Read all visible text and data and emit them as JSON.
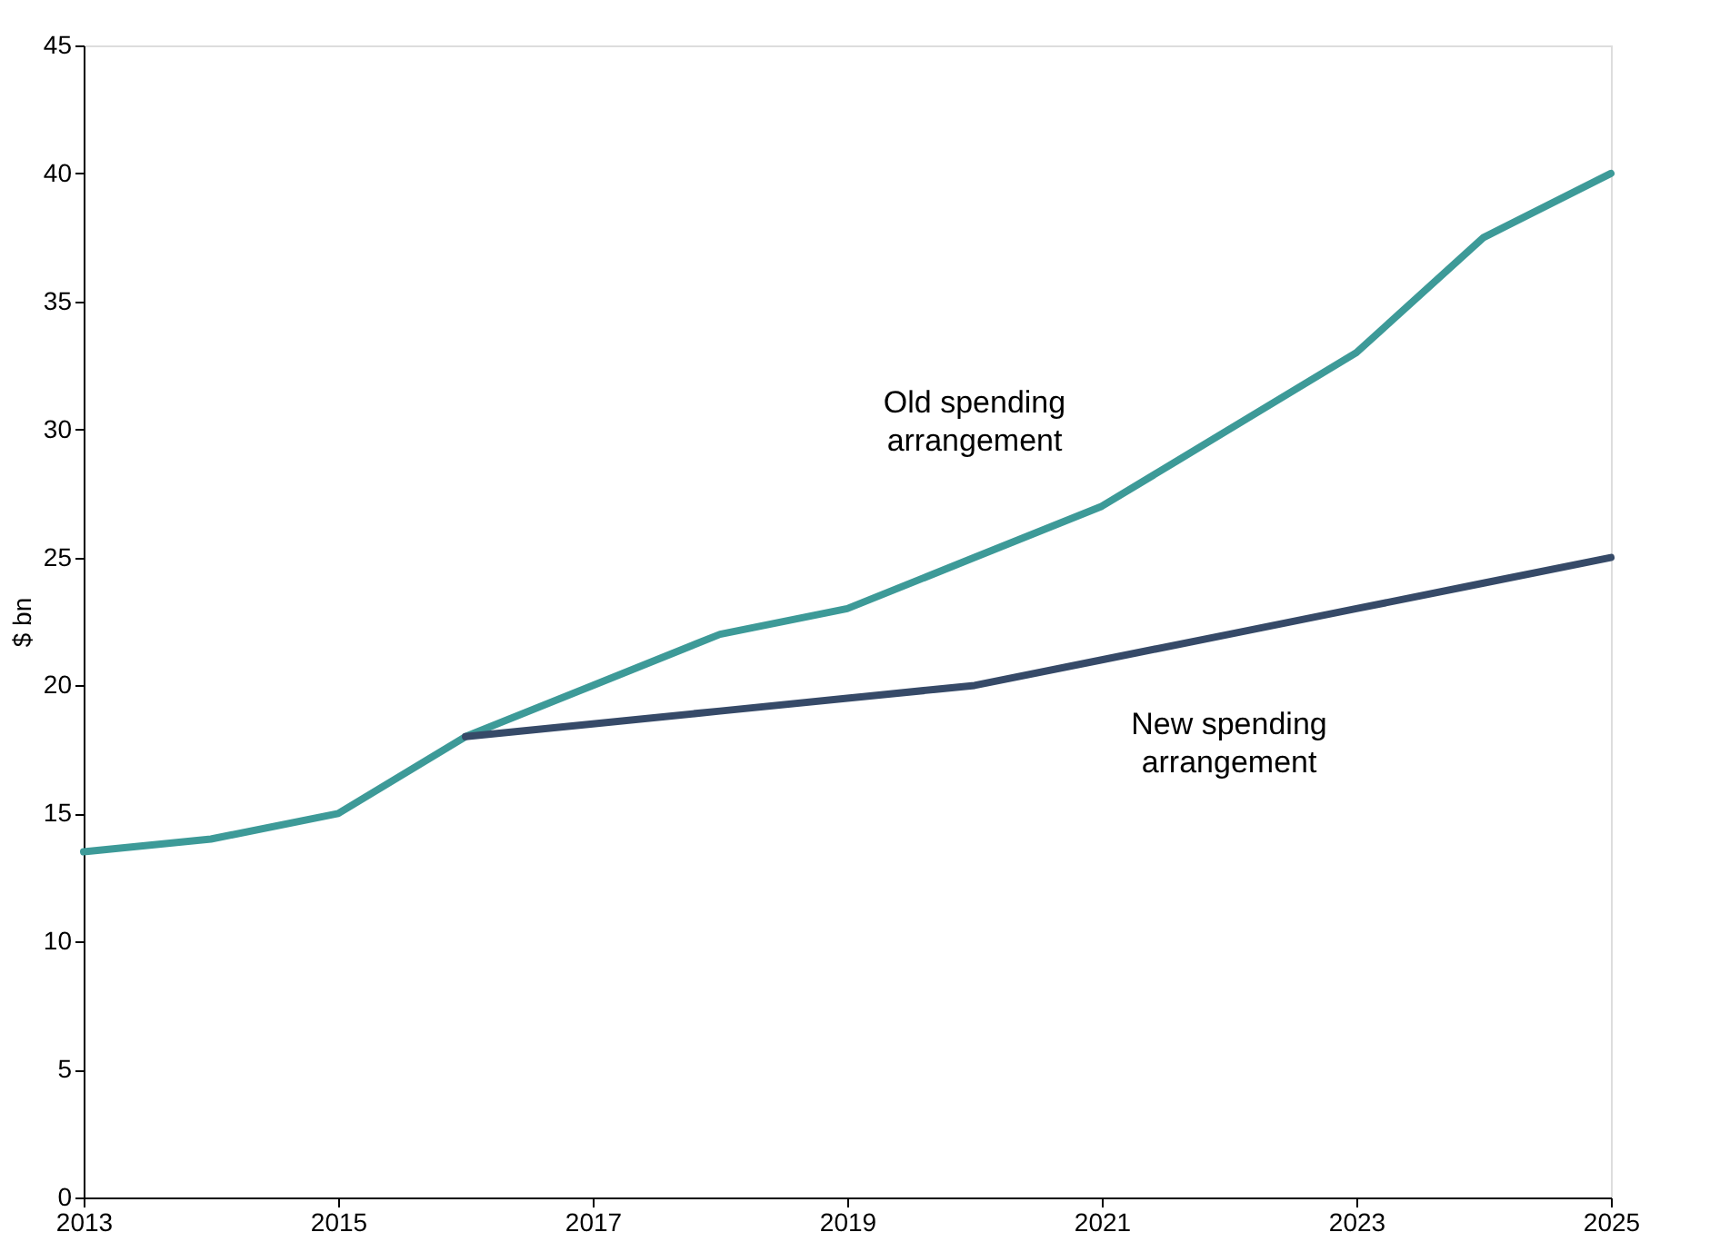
{
  "chart_data": {
    "type": "line",
    "ylabel": "$ bn",
    "x": [
      2013,
      2014,
      2015,
      2016,
      2017,
      2018,
      2019,
      2020,
      2021,
      2022,
      2023,
      2024,
      2025
    ],
    "series": [
      {
        "name": "Old spending arrangement",
        "color": "#3d9a98",
        "values": [
          13.5,
          14,
          15,
          18,
          20,
          22,
          23,
          25,
          27,
          30,
          33,
          37.5,
          40
        ]
      },
      {
        "name": "New spending arrangement",
        "color": "#364a68",
        "values": [
          null,
          null,
          null,
          18,
          18.5,
          19,
          19.5,
          20,
          21,
          22,
          23,
          24,
          25
        ]
      }
    ],
    "xlim": [
      2013,
      2025
    ],
    "xticks": [
      2013,
      2015,
      2017,
      2019,
      2021,
      2023,
      2025
    ],
    "ylim": [
      0,
      45
    ],
    "yticks": [
      0,
      5,
      10,
      15,
      20,
      25,
      30,
      35,
      40,
      45
    ],
    "grid": false,
    "legend": false,
    "marker": "none",
    "line_style": "solid"
  }
}
